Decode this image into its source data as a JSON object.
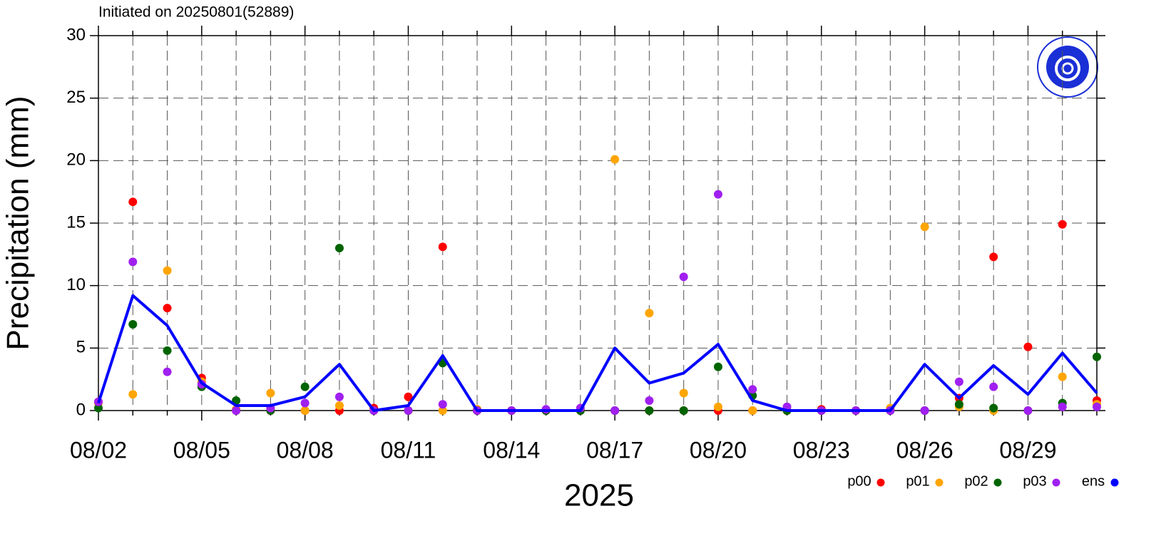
{
  "chart_data": {
    "type": "scatter",
    "title": "Initiated on 20250801(52889)",
    "x_label": "2025",
    "y_label": "Precipitation (mm)",
    "categories": [
      "08/02",
      null,
      null,
      "08/05",
      null,
      null,
      "08/08",
      null,
      null,
      "08/11",
      null,
      null,
      "08/14",
      null,
      null,
      "08/17",
      null,
      null,
      "08/20",
      null,
      null,
      "08/23",
      null,
      null,
      "08/26",
      null,
      null,
      "08/29",
      null,
      null
    ],
    "ylim": [
      0,
      30
    ],
    "yticks": [
      0,
      5,
      10,
      15,
      20,
      25,
      30
    ],
    "grid": true,
    "legend": "bottom-right",
    "series": [
      {
        "name": "p00",
        "color": "#ff0000",
        "style": "dots",
        "values": [
          0.7,
          16.7,
          8.2,
          2.6,
          0,
          0,
          0,
          0,
          0.2,
          1.1,
          13.1,
          0,
          0,
          0,
          0,
          0,
          0,
          0,
          0,
          0,
          0,
          0.1,
          0,
          0,
          0,
          1.0,
          12.3,
          5.1,
          14.9,
          0.8
        ]
      },
      {
        "name": "p01",
        "color": "#ffa500",
        "style": "dots",
        "values": [
          0.6,
          1.3,
          11.2,
          2.3,
          0.1,
          1.4,
          0,
          0.4,
          0,
          0,
          0,
          0.1,
          0,
          0,
          0,
          20.1,
          7.8,
          1.4,
          0.3,
          0,
          0,
          0,
          0,
          0.2,
          14.7,
          0.3,
          0,
          0,
          2.7,
          0.5
        ]
      },
      {
        "name": "p02",
        "color": "#006400",
        "style": "dots",
        "values": [
          0.2,
          6.9,
          4.8,
          1.9,
          0.8,
          0,
          1.9,
          13.0,
          0,
          0,
          3.8,
          0,
          0,
          0,
          0,
          0,
          0,
          0,
          3.5,
          1.2,
          0,
          0,
          0,
          0,
          0,
          0.5,
          0.2,
          0,
          0.6,
          4.3
        ]
      },
      {
        "name": "p03",
        "color": "#a020f0",
        "style": "dots",
        "values": [
          0.7,
          11.9,
          3.1,
          2.1,
          0,
          0.2,
          0.6,
          1.1,
          0,
          0,
          0.5,
          0,
          0,
          0.1,
          0.2,
          0,
          0.8,
          10.7,
          17.3,
          1.7,
          0.3,
          0,
          0,
          0,
          0,
          2.3,
          1.9,
          0,
          0.3,
          0.3
        ]
      },
      {
        "name": "ens",
        "color": "#0000ff",
        "style": "line",
        "values": [
          0.6,
          9.2,
          6.8,
          2.2,
          0.4,
          0.4,
          1.1,
          3.7,
          0,
          0.4,
          4.4,
          0,
          0,
          0,
          0,
          5.0,
          2.2,
          3.0,
          5.3,
          0.8,
          0,
          0,
          0,
          0,
          3.7,
          1.0,
          3.6,
          1.3,
          4.6,
          1.4
        ]
      }
    ]
  }
}
